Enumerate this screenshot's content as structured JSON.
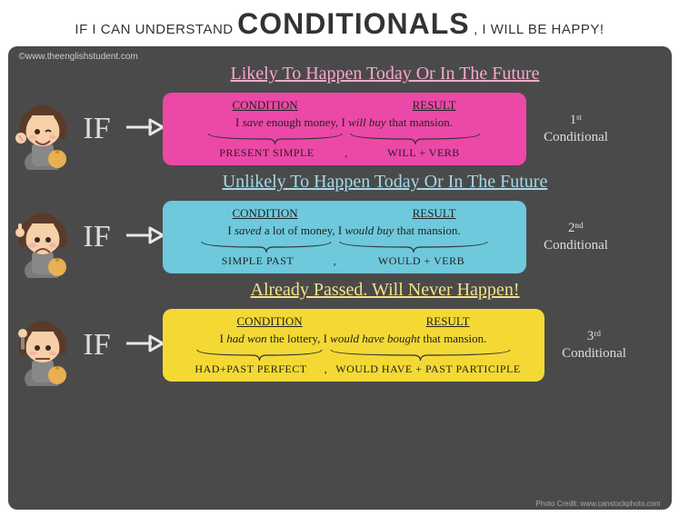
{
  "header": {
    "prefix": "IF I CAN UNDERSTAND",
    "main": "CONDITIONALS",
    "suffix": ", I WILL BE HAPPY!"
  },
  "credits": {
    "top": "©www.theenglishstudent.com",
    "bottom": "Photo Credit: www.canstockphoto.com"
  },
  "colors": {
    "panel_bg": "#4a4a4a",
    "arrow": "#e8e8e8",
    "if_text": "#dddddd"
  },
  "sections": [
    {
      "title": "Likely To Happen Today Or In The Future",
      "title_color": "#f5a8cc",
      "box_bg": "#ec48a7",
      "if": "IF",
      "label_line1": "1ˢᵗ",
      "label_line2": "Conditional",
      "headers": {
        "condition": "CONDITION",
        "result": "RESULT"
      },
      "sentence_html": "I <em>save</em> enough money, I <em>will buy</em> that mansion.",
      "brace": {
        "left_w": 155,
        "right_w": 150
      },
      "tense": {
        "left": "PRESENT SIMPLE",
        "right": "WILL + VERB"
      },
      "avatar_face": "wink"
    },
    {
      "title": "Unlikely To Happen Today Or In The Future",
      "title_color": "#a5d8e6",
      "box_bg": "#6ec9dc",
      "if": "IF",
      "label_line1": "2ⁿᵈ",
      "label_line2": "Conditional",
      "headers": {
        "condition": "CONDITION",
        "result": "RESULT"
      },
      "sentence_html": "I <em>saved</em> a lot of money, I <em>would buy</em> that mansion.",
      "brace": {
        "left_w": 150,
        "right_w": 170
      },
      "tense": {
        "left": "SIMPLE  PAST",
        "right": "WOULD + VERB"
      },
      "avatar_face": "sad"
    },
    {
      "title": "Already Passed. Will Never Happen!",
      "title_color": "#f2e28a",
      "box_bg": "#f4d935",
      "if": "IF",
      "label_line1": "3ʳᵈ",
      "label_line2": "Conditional",
      "headers": {
        "condition": "CONDITION",
        "result": "RESULT"
      },
      "sentence_html": "I <em>had won</em> the lottery, I <em>would have bought</em> that mansion.",
      "brace": {
        "left_w": 145,
        "right_w": 205
      },
      "tense": {
        "left": "HAD+PAST PERFECT",
        "right": "WOULD HAVE + PAST PARTICIPLE"
      },
      "avatar_face": "think"
    }
  ]
}
